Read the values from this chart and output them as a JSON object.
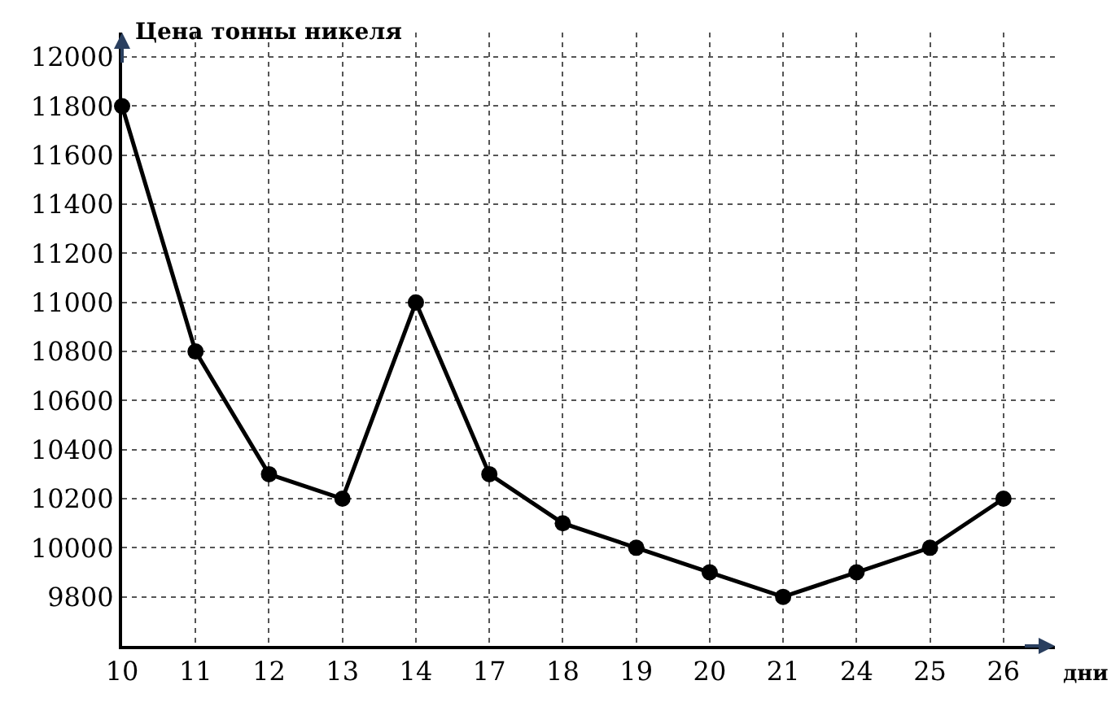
{
  "chart_data": {
    "type": "line",
    "ylabel": "Цена тонны никеля",
    "xlabel": "дни",
    "categories": [
      "10",
      "11",
      "12",
      "13",
      "14",
      "17",
      "18",
      "19",
      "20",
      "21",
      "24",
      "25",
      "26"
    ],
    "values": [
      11800,
      10800,
      10300,
      10200,
      11000,
      10300,
      10100,
      10000,
      9900,
      9800,
      9900,
      10000,
      10200
    ],
    "color": "#000000",
    "ylim": [
      9600,
      12100
    ],
    "yticks": [
      9800,
      10000,
      10200,
      10400,
      10600,
      10800,
      11000,
      11200,
      11400,
      11600,
      11800,
      12000
    ],
    "grid": true,
    "marker": "circle",
    "line_style": "solid"
  }
}
